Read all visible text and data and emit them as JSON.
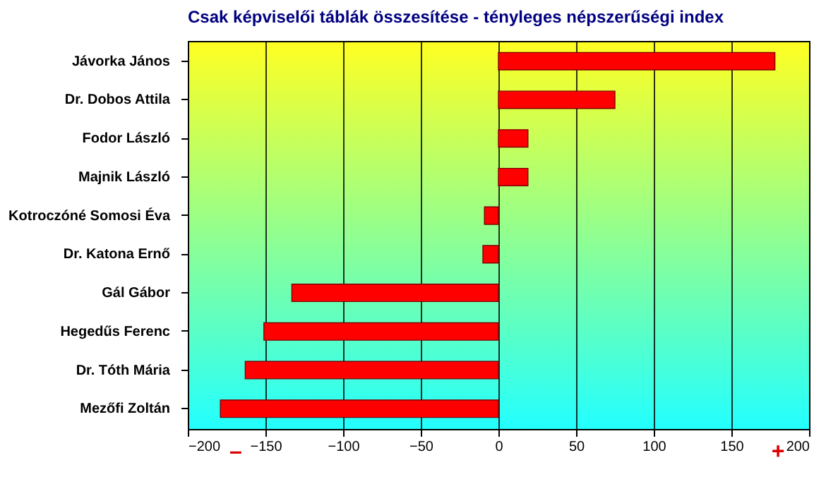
{
  "chart_data": {
    "type": "bar",
    "orientation": "horizontal",
    "title": "Csak képviselői táblák összesítése - tényleges népszerűségi index",
    "categories": [
      "Jávorka János",
      "Dr. Dobos Attila",
      "Fodor László",
      "Majnik László",
      "Kotroczóné Somosi Éva",
      "Dr. Katona Ernő",
      "Gál Gábor",
      "Hegedűs Ferenc",
      "Dr. Tóth Mária",
      "Mezőfi Zoltán"
    ],
    "values": [
      178,
      75,
      19,
      19,
      -9,
      -10,
      -133,
      -151,
      -163,
      -179
    ],
    "color": "#ff0000",
    "xlim": [
      -200,
      200
    ],
    "xticks": [
      -200,
      -150,
      -100,
      -50,
      0,
      50,
      100,
      150,
      200
    ],
    "grid": "x",
    "annotations": [
      "–",
      "+"
    ]
  }
}
